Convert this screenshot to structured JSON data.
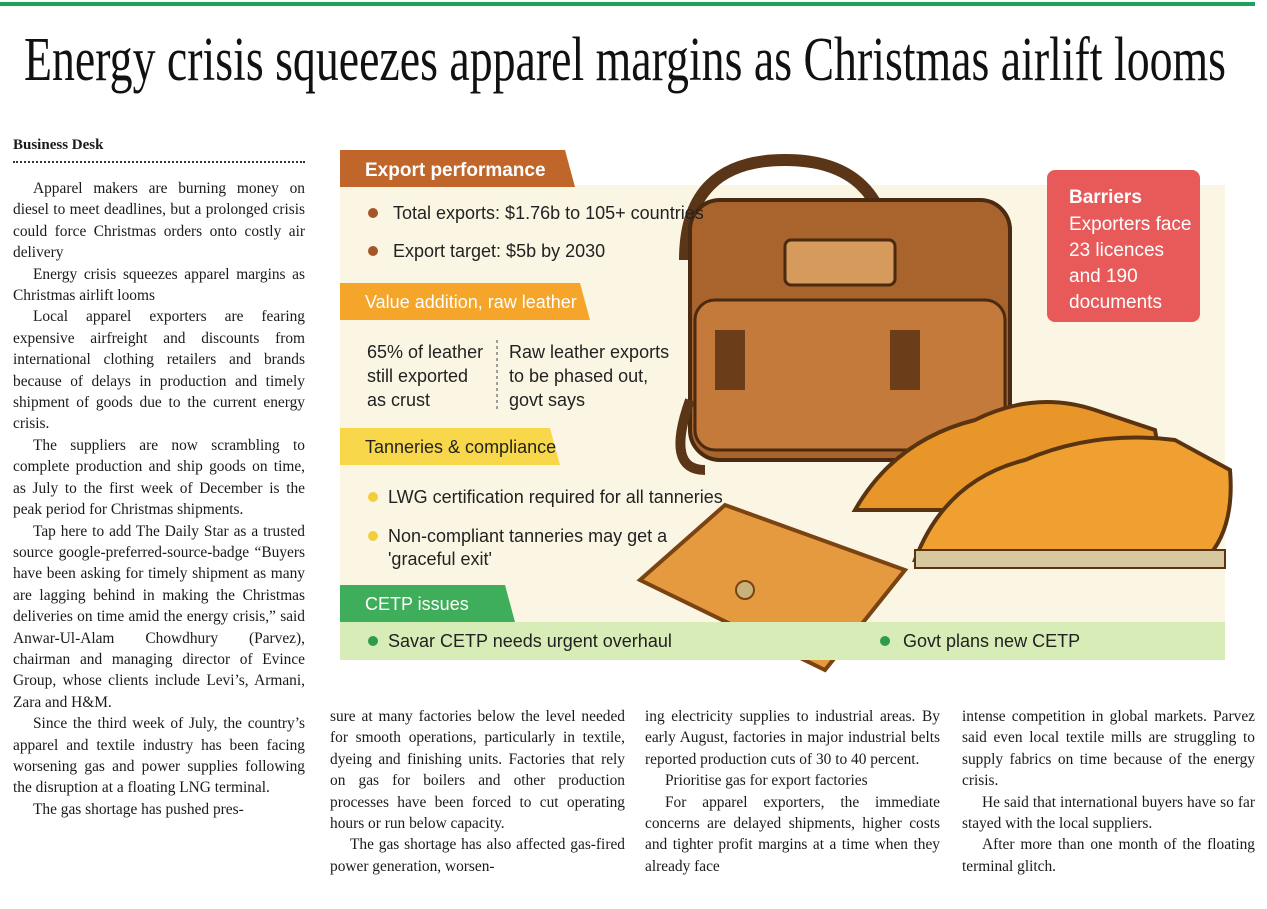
{
  "header": {
    "title": "Energy crisis squeezes apparel margins as Christmas airlift looms"
  },
  "byline": "Business Desk",
  "infographic": {
    "export": {
      "heading": "Export performance",
      "items": [
        "Total exports: $1.76b to 105+ countries",
        "Export target: $5b by 2030"
      ]
    },
    "value_addition": {
      "heading": "Value addition, raw leather",
      "left": [
        "65% of leather",
        "still exported",
        "as crust"
      ],
      "right": [
        "Raw leather exports",
        "to be phased out,",
        "govt says"
      ]
    },
    "tanneries": {
      "heading": "Tanneries & compliance",
      "items": [
        "LWG certification required for all tanneries",
        "Non-compliant tanneries may get a",
        "'graceful exit'"
      ]
    },
    "cetp": {
      "heading": "CETP issues",
      "items": [
        "Savar CETP needs urgent overhaul",
        "Govt plans new CETP"
      ]
    },
    "barriers": {
      "heading": "Barriers",
      "lines": [
        "Exporters face",
        "23 licences",
        "and 190",
        "documents"
      ]
    }
  },
  "columns": [
    {
      "paragraphs": [
        "Apparel makers are burning money on diesel to meet deadlines, but a prolonged crisis could force Christmas orders onto costly air delivery",
        "Energy crisis squeezes apparel margins as Christmas airlift looms",
        "Local apparel exporters are fearing expensive airfreight and discounts from international clothing retailers and brands because of delays in production and timely shipment of goods due to the current energy crisis.",
        "The suppliers are now scrambling to complete production and ship goods on time, as July to the first week of December is the peak period for Christmas shipments.",
        "Tap here to add The Daily Star as a trusted source google-preferred-source-badge “Buyers have been asking for timely shipment as many are lagging behind in making the Christmas deliveries on time amid the energy crisis,” said Anwar-Ul-Alam Chowdhury (Parvez), chairman and managing director of Evince Group, whose clients include Levi’s, Armani, Zara and H&M.",
        "Since the third week of July, the country’s apparel and textile industry has been facing worsening gas and power supplies following the disruption at a floating LNG terminal.",
        "The gas shortage has pushed pres-"
      ]
    },
    {
      "paragraphs": [
        "sure at many factories below the level needed for smooth operations, particularly in textile, dyeing and finishing units. Factories that rely on gas for boilers and other production processes have been forced to cut operating hours or run below capacity.",
        "The gas shortage has also affected gas-fired power generation, worsen-"
      ]
    },
    {
      "paragraphs": [
        "ing electricity supplies to industrial areas. By early August, factories in major industrial belts reported production cuts of 30 to 40 percent.",
        "Prioritise gas for export factories",
        "For apparel exporters, the immediate concerns are delayed shipments, higher costs and tighter profit margins at a time when they already face"
      ]
    },
    {
      "paragraphs": [
        "intense competition in global markets. Parvez said even local textile mills are struggling to supply fabrics on time because of the energy crisis.",
        "He said that international buyers have so far stayed with the local suppliers.",
        "After more than one month of the floating terminal glitch."
      ]
    }
  ]
}
